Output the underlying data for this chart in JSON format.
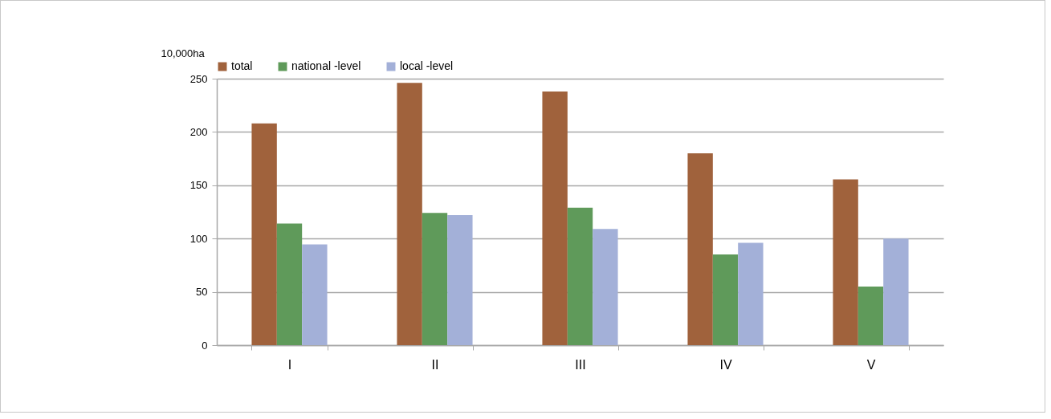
{
  "chart_data": {
    "type": "bar",
    "ylabel": "10,000ha",
    "categories": [
      "I",
      "II",
      "III",
      "IV",
      "V"
    ],
    "series": [
      {
        "name": "total",
        "color": "#a0623c",
        "values": [
          208,
          246,
          238,
          180,
          155.5
        ]
      },
      {
        "name": "national -level",
        "color": "#5f9a5a",
        "values": [
          114,
          124,
          129,
          85,
          55
        ]
      },
      {
        "name": "local -level",
        "color": "#a3b0d8",
        "values": [
          94.5,
          122,
          109,
          96,
          100
        ]
      }
    ],
    "ylim": [
      0,
      250
    ],
    "yticks": [
      0,
      50,
      100,
      150,
      200,
      250
    ],
    "grid": "y",
    "legend": "top"
  }
}
